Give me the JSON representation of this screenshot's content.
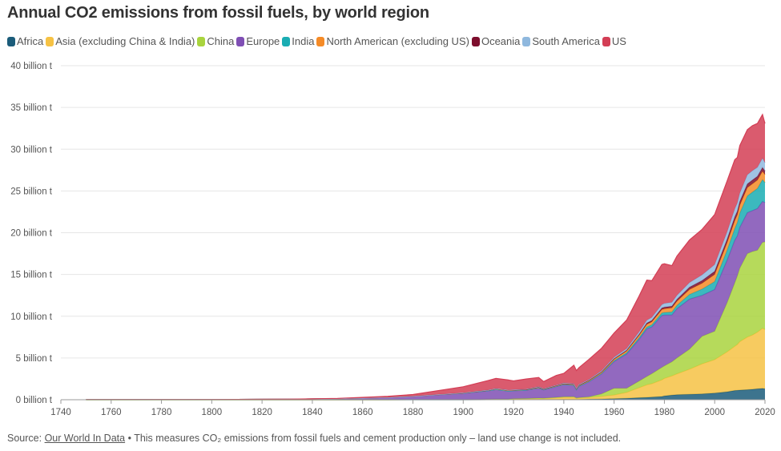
{
  "title": "Annual CO2 emissions from fossil fuels, by world region",
  "source": {
    "label": "Source:",
    "link_text": "Our World In Data",
    "note": " • This measures CO₂ emissions from fossil fuels and cement production only – land use change is not included."
  },
  "chart_data": {
    "type": "area",
    "stacked": true,
    "title": "Annual CO2 emissions from fossil fuels, by world region",
    "xlabel": "",
    "ylabel": "",
    "x_range": [
      1740,
      2020
    ],
    "ylim": [
      0,
      40
    ],
    "y_unit": "billion t",
    "x_ticks": [
      "1740",
      "1760",
      "1780",
      "1800",
      "1820",
      "1840",
      "1860",
      "1880",
      "1900",
      "1920",
      "1940",
      "1960",
      "1980",
      "2000",
      "2020"
    ],
    "y_ticks": [
      "0 billion t",
      "5 billion t",
      "10 billion t",
      "15 billion t",
      "20 billion t",
      "25 billion t",
      "30 billion t",
      "35 billion t",
      "40 billion t"
    ],
    "grid": true,
    "legend_position": "top",
    "x": [
      1750,
      1800,
      1830,
      1850,
      1870,
      1880,
      1900,
      1910,
      1913,
      1918,
      1920,
      1925,
      1930,
      1932,
      1937,
      1940,
      1944,
      1945,
      1946,
      1950,
      1955,
      1960,
      1965,
      1970,
      1973,
      1975,
      1979,
      1980,
      1983,
      1985,
      1990,
      1995,
      2000,
      2005,
      2008,
      2009,
      2010,
      2013,
      2015,
      2017,
      2019,
      2020
    ],
    "series": [
      {
        "name": "Africa",
        "color": "#1b5c7a",
        "values": [
          0,
          0,
          0,
          0,
          0,
          0,
          0,
          0.01,
          0.01,
          0.01,
          0.02,
          0.02,
          0.03,
          0.03,
          0.03,
          0.04,
          0.05,
          0.05,
          0.05,
          0.07,
          0.09,
          0.12,
          0.17,
          0.24,
          0.28,
          0.32,
          0.38,
          0.45,
          0.55,
          0.6,
          0.65,
          0.7,
          0.8,
          0.95,
          1.1,
          1.12,
          1.15,
          1.2,
          1.25,
          1.3,
          1.35,
          1.3
        ]
      },
      {
        "name": "Asia (excluding China & India)",
        "color": "#f6c244",
        "values": [
          0,
          0,
          0,
          0,
          0,
          0.01,
          0.02,
          0.04,
          0.05,
          0.06,
          0.08,
          0.1,
          0.13,
          0.12,
          0.2,
          0.25,
          0.25,
          0.12,
          0.15,
          0.2,
          0.3,
          0.45,
          0.7,
          1.2,
          1.5,
          1.6,
          2.0,
          2.1,
          2.3,
          2.5,
          3.0,
          3.6,
          4.0,
          4.8,
          5.3,
          5.5,
          5.8,
          6.3,
          6.5,
          6.8,
          7.2,
          7.1
        ]
      },
      {
        "name": "China",
        "color": "#a9d43e",
        "values": [
          0,
          0,
          0,
          0,
          0,
          0,
          0,
          0.01,
          0.01,
          0.01,
          0.02,
          0.02,
          0.03,
          0.03,
          0.05,
          0.06,
          0.06,
          0.05,
          0.05,
          0.08,
          0.3,
          0.8,
          0.5,
          0.8,
          1.0,
          1.2,
          1.5,
          1.5,
          1.7,
          1.9,
          2.4,
          3.3,
          3.4,
          5.9,
          7.6,
          8.2,
          8.8,
          10.0,
          10.0,
          9.8,
          10.3,
          10.5
        ]
      },
      {
        "name": "Europe",
        "color": "#7f4fb4",
        "values": [
          0.01,
          0.03,
          0.06,
          0.12,
          0.28,
          0.4,
          0.75,
          1.0,
          1.15,
          0.95,
          0.95,
          1.0,
          1.2,
          1.0,
          1.3,
          1.45,
          1.35,
          0.95,
          1.35,
          1.8,
          2.4,
          3.2,
          4.1,
          5.0,
          5.7,
          5.6,
          6.2,
          6.1,
          5.6,
          5.9,
          6.0,
          4.9,
          5.0,
          5.1,
          5.1,
          4.8,
          4.9,
          4.9,
          4.9,
          5.0,
          4.9,
          4.7
        ]
      },
      {
        "name": "India",
        "color": "#1aadb3",
        "values": [
          0,
          0,
          0,
          0,
          0,
          0,
          0.01,
          0.02,
          0.02,
          0.02,
          0.02,
          0.02,
          0.03,
          0.03,
          0.03,
          0.04,
          0.04,
          0.04,
          0.04,
          0.05,
          0.07,
          0.11,
          0.15,
          0.2,
          0.22,
          0.25,
          0.3,
          0.3,
          0.35,
          0.4,
          0.55,
          0.75,
          0.95,
          1.2,
          1.4,
          1.6,
          1.7,
          2.0,
          2.2,
          2.4,
          2.6,
          2.4
        ]
      },
      {
        "name": "North American (excluding US)",
        "color": "#f58b27",
        "values": [
          0,
          0,
          0,
          0,
          0,
          0.01,
          0.03,
          0.05,
          0.06,
          0.06,
          0.06,
          0.06,
          0.07,
          0.06,
          0.07,
          0.08,
          0.09,
          0.09,
          0.09,
          0.1,
          0.13,
          0.17,
          0.22,
          0.3,
          0.33,
          0.36,
          0.42,
          0.44,
          0.5,
          0.5,
          0.6,
          0.7,
          0.85,
          0.9,
          0.95,
          0.92,
          0.95,
          1.0,
          1.0,
          1.0,
          1.0,
          0.95
        ]
      },
      {
        "name": "Oceania",
        "color": "#7d0e2d",
        "values": [
          0,
          0,
          0,
          0,
          0,
          0,
          0.01,
          0.01,
          0.02,
          0.02,
          0.02,
          0.02,
          0.03,
          0.02,
          0.03,
          0.03,
          0.03,
          0.03,
          0.03,
          0.04,
          0.05,
          0.07,
          0.09,
          0.12,
          0.15,
          0.16,
          0.18,
          0.19,
          0.2,
          0.22,
          0.28,
          0.32,
          0.38,
          0.42,
          0.45,
          0.44,
          0.44,
          0.44,
          0.45,
          0.45,
          0.46,
          0.44
        ]
      },
      {
        "name": "South America",
        "color": "#8fb8de",
        "values": [
          0,
          0,
          0,
          0,
          0,
          0,
          0.01,
          0.02,
          0.03,
          0.03,
          0.03,
          0.04,
          0.05,
          0.04,
          0.05,
          0.06,
          0.06,
          0.06,
          0.07,
          0.09,
          0.12,
          0.16,
          0.2,
          0.28,
          0.34,
          0.36,
          0.42,
          0.45,
          0.46,
          0.48,
          0.55,
          0.68,
          0.8,
          0.87,
          0.95,
          0.98,
          1.0,
          1.1,
          1.12,
          1.08,
          1.1,
          0.98
        ]
      },
      {
        "name": "US",
        "color": "#d33e55",
        "values": [
          0,
          0,
          0,
          0.04,
          0.13,
          0.2,
          0.72,
          1.15,
          1.2,
          1.2,
          1.05,
          1.2,
          1.1,
          0.85,
          1.15,
          1.15,
          2.2,
          2.1,
          2.0,
          2.4,
          2.7,
          2.9,
          3.4,
          4.3,
          4.8,
          4.4,
          4.8,
          4.75,
          4.4,
          4.7,
          5.1,
          5.45,
          6.0,
          6.1,
          5.9,
          5.45,
          5.7,
          5.4,
          5.4,
          5.25,
          5.25,
          4.7
        ]
      }
    ]
  }
}
